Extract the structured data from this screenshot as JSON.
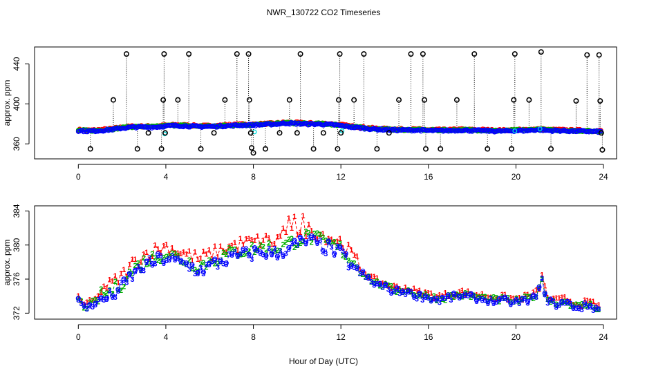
{
  "chart_data": [
    {
      "type": "scatter",
      "panel": "top",
      "title": "NWR_130722  CO2 Timeseries",
      "xlabel": "",
      "ylabel": "approx. ppm",
      "xlim": [
        -2.0,
        24.6
      ],
      "ylim": [
        345,
        457
      ],
      "xticks": [
        0,
        4,
        8,
        12,
        16,
        20,
        24
      ],
      "yticks": [
        360,
        400,
        440
      ],
      "colors": {
        "line1": "#ff0000",
        "line2": "#00b000",
        "line3": "#0000ff",
        "ref": "#00e0e0",
        "outlier": "#000000"
      },
      "baseline": [
        [
          0.0,
          373.5
        ],
        [
          0.5,
          373.0
        ],
        [
          1.0,
          373.5
        ],
        [
          1.5,
          374.5
        ],
        [
          2.0,
          376.0
        ],
        [
          2.5,
          377.0
        ],
        [
          3.0,
          377.0
        ],
        [
          3.5,
          377.0
        ],
        [
          4.0,
          378.0
        ],
        [
          4.5,
          378.5
        ],
        [
          5.0,
          378.0
        ],
        [
          5.5,
          377.5
        ],
        [
          6.0,
          377.5
        ],
        [
          6.5,
          378.0
        ],
        [
          7.0,
          378.5
        ],
        [
          7.5,
          379.0
        ],
        [
          8.0,
          379.0
        ],
        [
          8.5,
          379.5
        ],
        [
          9.0,
          380.0
        ],
        [
          9.5,
          381.0
        ],
        [
          10.0,
          380.5
        ],
        [
          10.5,
          380.0
        ],
        [
          11.0,
          380.0
        ],
        [
          11.5,
          379.5
        ],
        [
          12.0,
          378.5
        ],
        [
          12.5,
          377.0
        ],
        [
          13.0,
          376.0
        ],
        [
          13.5,
          375.0
        ],
        [
          14.0,
          374.5
        ],
        [
          14.5,
          374.0
        ],
        [
          15.0,
          374.0
        ],
        [
          15.5,
          374.0
        ],
        [
          16.0,
          373.5
        ],
        [
          16.5,
          373.5
        ],
        [
          17.0,
          373.5
        ],
        [
          17.5,
          374.0
        ],
        [
          18.0,
          373.5
        ],
        [
          18.5,
          373.5
        ],
        [
          19.0,
          373.0
        ],
        [
          19.5,
          373.0
        ],
        [
          20.0,
          373.5
        ],
        [
          20.5,
          373.5
        ],
        [
          21.0,
          374.5
        ],
        [
          21.5,
          373.5
        ],
        [
          22.0,
          373.5
        ],
        [
          22.5,
          373.0
        ],
        [
          23.0,
          373.0
        ],
        [
          23.5,
          372.5
        ],
        [
          23.9,
          372.5
        ]
      ],
      "outliers": [
        [
          0.55,
          355
        ],
        [
          1.6,
          404
        ],
        [
          2.2,
          450
        ],
        [
          2.7,
          355
        ],
        [
          3.2,
          371
        ],
        [
          3.8,
          355
        ],
        [
          3.88,
          404
        ],
        [
          3.92,
          450
        ],
        [
          3.97,
          371
        ],
        [
          4.55,
          404
        ],
        [
          5.05,
          450
        ],
        [
          5.6,
          355
        ],
        [
          6.2,
          371
        ],
        [
          6.7,
          404
        ],
        [
          7.25,
          450
        ],
        [
          7.78,
          450
        ],
        [
          7.82,
          404
        ],
        [
          7.88,
          371
        ],
        [
          7.92,
          356
        ],
        [
          8.0,
          351
        ],
        [
          8.55,
          355
        ],
        [
          9.2,
          371
        ],
        [
          9.65,
          404
        ],
        [
          10.0,
          371
        ],
        [
          10.15,
          450
        ],
        [
          10.75,
          355
        ],
        [
          11.2,
          371
        ],
        [
          11.85,
          355
        ],
        [
          11.9,
          404
        ],
        [
          11.95,
          450
        ],
        [
          12.0,
          371
        ],
        [
          12.6,
          404
        ],
        [
          13.05,
          450
        ],
        [
          13.65,
          355
        ],
        [
          14.2,
          371
        ],
        [
          14.65,
          404
        ],
        [
          15.2,
          450
        ],
        [
          15.75,
          450
        ],
        [
          15.82,
          404
        ],
        [
          15.88,
          355
        ],
        [
          16.55,
          355
        ],
        [
          17.3,
          404
        ],
        [
          18.1,
          450
        ],
        [
          18.7,
          355
        ],
        [
          19.8,
          355
        ],
        [
          19.9,
          404
        ],
        [
          19.95,
          450
        ],
        [
          20.6,
          404
        ],
        [
          21.15,
          452
        ],
        [
          21.6,
          355
        ],
        [
          22.75,
          403
        ],
        [
          23.25,
          449
        ],
        [
          23.8,
          449
        ],
        [
          23.85,
          403
        ],
        [
          23.9,
          371
        ],
        [
          23.95,
          354
        ]
      ]
    },
    {
      "type": "scatter",
      "panel": "bottom",
      "title": "",
      "xlabel": "Hour of Day (UTC)",
      "ylabel": "approx. ppm",
      "xlim": [
        -2.0,
        24.6
      ],
      "ylim": [
        371.3,
        384.6
      ],
      "xticks": [
        0,
        4,
        8,
        12,
        16,
        20,
        24
      ],
      "yticks": [
        372,
        376,
        380,
        384
      ],
      "series": [
        {
          "name": "1",
          "color": "#ff0000",
          "offset": 1.4
        },
        {
          "name": "2",
          "color": "#00b000",
          "offset": 0.6
        },
        {
          "name": "3",
          "color": "#0000ff",
          "offset": 0.0
        }
      ],
      "trend": [
        [
          0.0,
          373.5
        ],
        [
          0.3,
          372.5
        ],
        [
          0.6,
          372.9
        ],
        [
          1.0,
          373.5
        ],
        [
          1.5,
          374.0
        ],
        [
          2.0,
          375.0
        ],
        [
          2.5,
          376.5
        ],
        [
          3.0,
          377.5
        ],
        [
          3.5,
          378.0
        ],
        [
          4.0,
          378.5
        ],
        [
          4.5,
          378.0
        ],
        [
          5.0,
          377.5
        ],
        [
          5.5,
          377.0
        ],
        [
          6.0,
          377.5
        ],
        [
          6.5,
          378.0
        ],
        [
          7.0,
          378.5
        ],
        [
          7.5,
          378.8
        ],
        [
          8.0,
          379.0
        ],
        [
          8.5,
          379.2
        ],
        [
          9.0,
          379.0
        ],
        [
          9.5,
          379.5
        ],
        [
          10.0,
          380.0
        ],
        [
          10.5,
          380.5
        ],
        [
          11.0,
          380.0
        ],
        [
          11.5,
          379.5
        ],
        [
          12.0,
          379.0
        ],
        [
          12.5,
          377.5
        ],
        [
          13.0,
          376.5
        ],
        [
          13.5,
          375.5
        ],
        [
          14.0,
          375.0
        ],
        [
          14.5,
          374.5
        ],
        [
          15.0,
          374.5
        ],
        [
          15.5,
          374.0
        ],
        [
          16.0,
          373.8
        ],
        [
          16.5,
          373.5
        ],
        [
          17.0,
          373.8
        ],
        [
          17.5,
          374.0
        ],
        [
          18.0,
          373.8
        ],
        [
          18.5,
          373.6
        ],
        [
          19.0,
          373.4
        ],
        [
          19.5,
          373.4
        ],
        [
          20.0,
          373.2
        ],
        [
          20.5,
          373.5
        ],
        [
          21.0,
          374.0
        ],
        [
          21.2,
          376.0
        ],
        [
          21.4,
          373.5
        ],
        [
          21.8,
          373.0
        ],
        [
          22.3,
          373.2
        ],
        [
          22.8,
          372.6
        ],
        [
          23.3,
          372.8
        ],
        [
          23.8,
          372.4
        ]
      ]
    }
  ]
}
